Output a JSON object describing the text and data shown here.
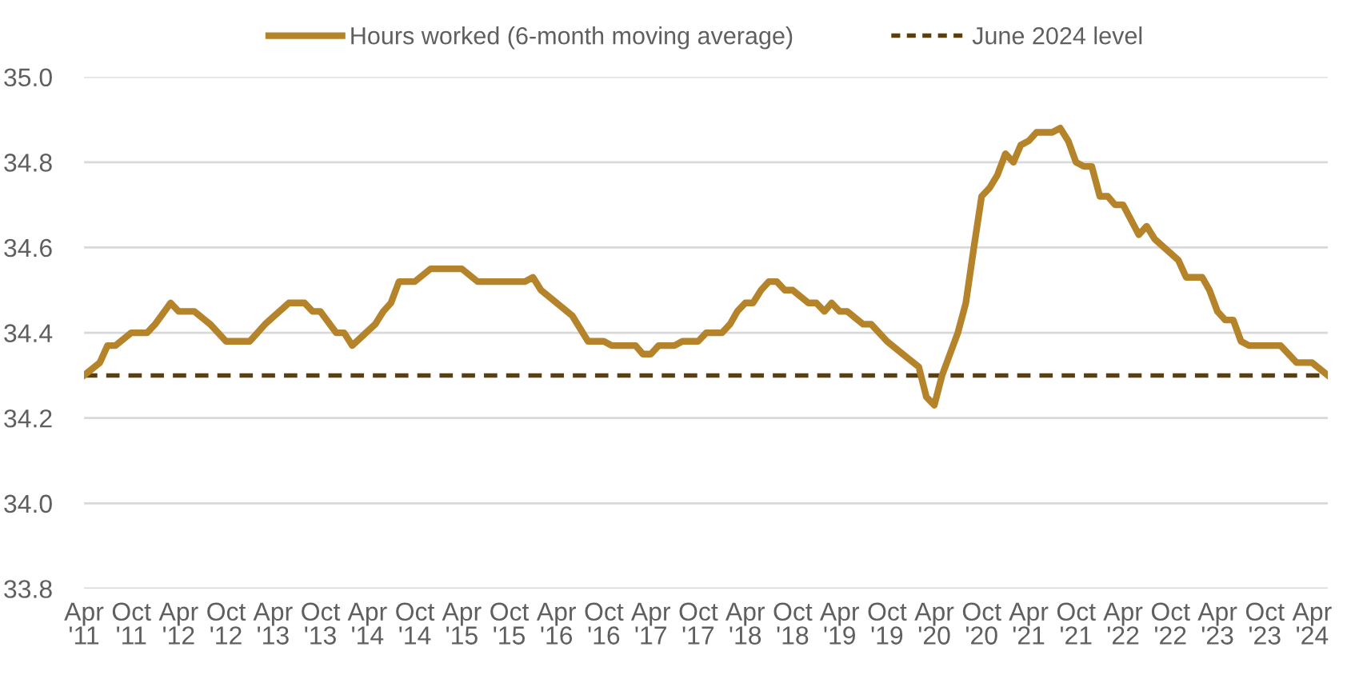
{
  "chart_data": {
    "type": "line",
    "x": [
      "2011-04",
      "2011-06",
      "2011-07",
      "2011-08",
      "2011-10",
      "2011-12",
      "2012-01",
      "2012-03",
      "2012-04",
      "2012-06",
      "2012-08",
      "2012-10",
      "2013-01",
      "2013-03",
      "2013-06",
      "2013-08",
      "2013-09",
      "2013-10",
      "2013-12",
      "2014-01",
      "2014-02",
      "2014-05",
      "2014-06",
      "2014-07",
      "2014-08",
      "2014-10",
      "2014-12",
      "2015-04",
      "2015-06",
      "2015-12",
      "2016-01",
      "2016-02",
      "2016-06",
      "2016-08",
      "2016-10",
      "2016-11",
      "2017-02",
      "2017-03",
      "2017-04",
      "2017-05",
      "2017-07",
      "2017-08",
      "2017-10",
      "2017-11",
      "2018-01",
      "2018-02",
      "2018-03",
      "2018-04",
      "2018-05",
      "2018-06",
      "2018-07",
      "2018-08",
      "2018-09",
      "2018-10",
      "2018-12",
      "2019-01",
      "2019-02",
      "2019-03",
      "2019-04",
      "2019-05",
      "2019-07",
      "2019-08",
      "2019-10",
      "2019-12",
      "2020-02",
      "2020-03",
      "2020-04",
      "2020-05",
      "2020-07",
      "2020-08",
      "2020-09",
      "2020-10",
      "2020-11",
      "2020-12",
      "2021-01",
      "2021-02",
      "2021-03",
      "2021-04",
      "2021-05",
      "2021-07",
      "2021-08",
      "2021-09",
      "2021-10",
      "2021-11",
      "2021-12",
      "2022-01",
      "2022-02",
      "2022-03",
      "2022-04",
      "2022-06",
      "2022-07",
      "2022-08",
      "2022-11",
      "2022-12",
      "2023-02",
      "2023-03",
      "2023-04",
      "2023-05",
      "2023-06",
      "2023-07",
      "2023-08",
      "2023-12",
      "2024-02",
      "2024-04",
      "2024-06"
    ],
    "series": [
      {
        "name": "Hours worked (6-month moving average)",
        "color": "#b5832a",
        "values": [
          34.3,
          34.33,
          34.37,
          34.37,
          34.4,
          34.4,
          34.42,
          34.47,
          34.45,
          34.45,
          34.42,
          34.38,
          34.38,
          34.42,
          34.47,
          34.47,
          34.45,
          34.45,
          34.4,
          34.4,
          34.37,
          34.42,
          34.45,
          34.47,
          34.52,
          34.52,
          34.55,
          34.55,
          34.52,
          34.52,
          34.53,
          34.5,
          34.44,
          34.38,
          34.38,
          34.37,
          34.37,
          34.35,
          34.35,
          34.37,
          34.37,
          34.38,
          34.38,
          34.4,
          34.4,
          34.42,
          34.45,
          34.47,
          34.47,
          34.5,
          34.52,
          34.52,
          34.5,
          34.5,
          34.47,
          34.47,
          34.45,
          34.47,
          34.45,
          34.45,
          34.42,
          34.42,
          34.38,
          34.35,
          34.32,
          34.25,
          34.23,
          34.3,
          34.4,
          34.47,
          34.6,
          34.72,
          34.74,
          34.77,
          34.82,
          34.8,
          34.84,
          34.85,
          34.87,
          34.87,
          34.88,
          34.85,
          34.8,
          34.79,
          34.79,
          34.72,
          34.72,
          34.7,
          34.7,
          34.63,
          34.65,
          34.62,
          34.57,
          34.53,
          34.53,
          34.5,
          34.45,
          34.43,
          34.43,
          34.38,
          34.37,
          34.37,
          34.33,
          34.33,
          34.3
        ]
      }
    ],
    "ref_lines": [
      {
        "axis": "y",
        "value": 34.3,
        "label": "June 2024 level",
        "color": "#5a3f10",
        "line_style": "dashed"
      }
    ],
    "xlim": [
      "2011-04",
      "2024-06"
    ],
    "xticks": [
      {
        "value": "2011-04",
        "label": "Apr\n'11"
      },
      {
        "value": "2011-10",
        "label": "Oct\n'11"
      },
      {
        "value": "2012-04",
        "label": "Apr\n'12"
      },
      {
        "value": "2012-10",
        "label": "Oct\n'12"
      },
      {
        "value": "2013-04",
        "label": "Apr\n'13"
      },
      {
        "value": "2013-10",
        "label": "Oct\n'13"
      },
      {
        "value": "2014-04",
        "label": "Apr\n'14"
      },
      {
        "value": "2014-10",
        "label": "Oct\n'14"
      },
      {
        "value": "2015-04",
        "label": "Apr\n'15"
      },
      {
        "value": "2015-10",
        "label": "Oct\n'15"
      },
      {
        "value": "2016-04",
        "label": "Apr\n'16"
      },
      {
        "value": "2016-10",
        "label": "Oct\n'16"
      },
      {
        "value": "2017-04",
        "label": "Apr\n'17"
      },
      {
        "value": "2017-10",
        "label": "Oct\n'17"
      },
      {
        "value": "2018-04",
        "label": "Apr\n'18"
      },
      {
        "value": "2018-10",
        "label": "Oct\n'18"
      },
      {
        "value": "2019-04",
        "label": "Apr\n'19"
      },
      {
        "value": "2019-10",
        "label": "Oct\n'19"
      },
      {
        "value": "2020-04",
        "label": "Apr\n'20"
      },
      {
        "value": "2020-10",
        "label": "Oct\n'20"
      },
      {
        "value": "2021-04",
        "label": "Apr\n'21"
      },
      {
        "value": "2021-10",
        "label": "Oct\n'21"
      },
      {
        "value": "2022-04",
        "label": "Apr\n'22"
      },
      {
        "value": "2022-10",
        "label": "Oct\n'22"
      },
      {
        "value": "2023-04",
        "label": "Apr\n'23"
      },
      {
        "value": "2023-10",
        "label": "Oct\n'23"
      },
      {
        "value": "2024-04",
        "label": "Apr\n'24"
      }
    ],
    "ylim": [
      33.8,
      35.0
    ],
    "yticks": [
      {
        "value": 33.8,
        "label": "33.8"
      },
      {
        "value": 34.0,
        "label": "34.0"
      },
      {
        "value": 34.2,
        "label": "34.2"
      },
      {
        "value": 34.4,
        "label": "34.4"
      },
      {
        "value": 34.6,
        "label": "34.6"
      },
      {
        "value": 34.8,
        "label": "34.8"
      },
      {
        "value": 35.0,
        "label": "35.0"
      }
    ],
    "grid": "y",
    "legend": "top",
    "marker": "none",
    "line_style": "solid"
  }
}
